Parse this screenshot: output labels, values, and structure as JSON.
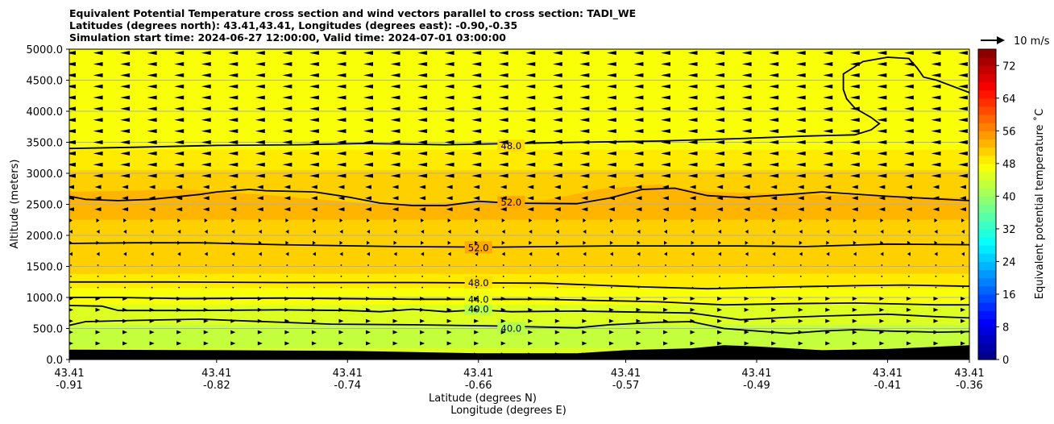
{
  "chart_data": {
    "type": "contour_cross_section",
    "title_lines": [
      "Equivalent Potential Temperature cross section and wind vectors parallel to cross section: TADI_WE",
      "Latitudes (degrees north): 43.41,43.41, Longitudes (degrees east): -0.90,-0.35",
      "Simulation start time: 2024-06-27 12:00:00, Valid time: 2024-07-01 03:00:00"
    ],
    "ylabel": "Altitude (meters)",
    "xlabel_lat": "Latitude (degrees N)",
    "xlabel_lon": "Longitude (degrees E)",
    "ylim": [
      0,
      5000
    ],
    "yticks": [
      "0.0",
      "500.0",
      "1000.0",
      "1500.0",
      "2000.0",
      "2500.0",
      "3000.0",
      "3500.0",
      "4000.0",
      "4500.0",
      "5000.0"
    ],
    "xlim": [
      -0.91,
      -0.36
    ],
    "xticks": [
      {
        "lon": -0.91,
        "lat_label": "43.41",
        "lon_label": "-0.91"
      },
      {
        "lon": -0.82,
        "lat_label": "43.41",
        "lon_label": "-0.82"
      },
      {
        "lon": -0.74,
        "lat_label": "43.41",
        "lon_label": "-0.74"
      },
      {
        "lon": -0.66,
        "lat_label": "43.41",
        "lon_label": "-0.66"
      },
      {
        "lon": -0.57,
        "lat_label": "43.41",
        "lon_label": "-0.57"
      },
      {
        "lon": -0.49,
        "lat_label": "43.41",
        "lon_label": "-0.49"
      },
      {
        "lon": -0.41,
        "lat_label": "43.41",
        "lon_label": "-0.41"
      },
      {
        "lon": -0.36,
        "lat_label": "43.41",
        "lon_label": "-0.36"
      }
    ],
    "grid": true,
    "colorbar": {
      "label": "Equivalent potential temperature $^\\circ$C",
      "label_text": "Equivalent potential temperature ˚C",
      "min": 0,
      "max": 76,
      "step": 2,
      "ticks": [
        "0",
        "8",
        "16",
        "24",
        "32",
        "40",
        "48",
        "56",
        "64",
        "72"
      ]
    },
    "quiver_key": {
      "label": "10 m/s",
      "speed_ms": 10
    },
    "bands": [
      {
        "theta": 45,
        "profile": [
          [
            -0.91,
            180
          ],
          [
            -0.36,
            180
          ]
        ]
      },
      {
        "theta": 43,
        "profile": [
          [
            -0.91,
            560
          ],
          [
            -0.36,
            560
          ]
        ]
      },
      {
        "theta": 45,
        "profile": [
          [
            -0.91,
            880
          ],
          [
            -0.36,
            880
          ]
        ]
      },
      {
        "theta": 47,
        "profile": [
          [
            -0.91,
            1150
          ],
          [
            -0.36,
            1150
          ]
        ]
      },
      {
        "theta": 49,
        "profile": [
          [
            -0.91,
            1380
          ],
          [
            -0.36,
            1380
          ]
        ]
      },
      {
        "theta": 51,
        "profile": [
          [
            -0.91,
            2250
          ],
          [
            -0.36,
            2250
          ]
        ]
      },
      {
        "theta": 53,
        "profile": [
          [
            -0.91,
            2700
          ],
          [
            -0.84,
            2740
          ],
          [
            -0.79,
            2650
          ],
          [
            -0.72,
            2500
          ],
          [
            -0.62,
            2560
          ],
          [
            -0.585,
            2750
          ],
          [
            -0.55,
            2820
          ],
          [
            -0.52,
            2700
          ],
          [
            -0.36,
            2600
          ]
        ]
      },
      {
        "theta": 51,
        "profile": [
          [
            -0.91,
            3050
          ],
          [
            -0.36,
            3050
          ]
        ]
      },
      {
        "theta": 49,
        "profile": [
          [
            -0.91,
            3380
          ],
          [
            -0.36,
            3380
          ]
        ]
      },
      {
        "theta": 47,
        "profile": [
          [
            -0.91,
            5000
          ],
          [
            -0.36,
            5000
          ]
        ]
      }
    ],
    "terrain_m": [
      [
        -0.91,
        160
      ],
      [
        -0.82,
        150
      ],
      [
        -0.74,
        140
      ],
      [
        -0.66,
        100
      ],
      [
        -0.6,
        100
      ],
      [
        -0.57,
        150
      ],
      [
        -0.53,
        180
      ],
      [
        -0.51,
        230
      ],
      [
        -0.49,
        210
      ],
      [
        -0.45,
        150
      ],
      [
        -0.41,
        170
      ],
      [
        -0.36,
        230
      ]
    ],
    "contours": [
      {
        "level": 40,
        "label": "40.0",
        "label_pos": [
          -0.64,
          500
        ],
        "points": [
          [
            -0.91,
            550
          ],
          [
            -0.9,
            610
          ],
          [
            -0.87,
            630
          ],
          [
            -0.83,
            650
          ],
          [
            -0.8,
            620
          ],
          [
            -0.75,
            570
          ],
          [
            -0.7,
            560
          ],
          [
            -0.65,
            540
          ],
          [
            -0.6,
            510
          ],
          [
            -0.58,
            560
          ],
          [
            -0.55,
            600
          ],
          [
            -0.53,
            610
          ],
          [
            -0.51,
            500
          ],
          [
            -0.49,
            460
          ],
          [
            -0.47,
            420
          ],
          [
            -0.45,
            460
          ],
          [
            -0.43,
            480
          ],
          [
            -0.41,
            460
          ],
          [
            -0.38,
            440
          ],
          [
            -0.36,
            450
          ]
        ]
      },
      {
        "level": 40,
        "label": "40.0",
        "label_pos": [
          -0.66,
          810
        ],
        "points": [
          [
            -0.91,
            870
          ],
          [
            -0.89,
            860
          ],
          [
            -0.88,
            790
          ],
          [
            -0.83,
            790
          ],
          [
            -0.78,
            800
          ],
          [
            -0.74,
            790
          ],
          [
            -0.72,
            770
          ],
          [
            -0.7,
            810
          ],
          [
            -0.68,
            770
          ],
          [
            -0.66,
            800
          ],
          [
            -0.64,
            770
          ],
          [
            -0.6,
            780
          ],
          [
            -0.53,
            750
          ],
          [
            -0.5,
            640
          ],
          [
            -0.47,
            680
          ],
          [
            -0.45,
            700
          ],
          [
            -0.41,
            730
          ],
          [
            -0.38,
            690
          ],
          [
            -0.36,
            670
          ]
        ]
      },
      {
        "level": 44,
        "label": "44.0",
        "label_pos": [
          -0.66,
          970
        ],
        "points": [
          [
            -0.91,
            1000
          ],
          [
            -0.88,
            1000
          ],
          [
            -0.84,
            980
          ],
          [
            -0.78,
            990
          ],
          [
            -0.7,
            970
          ],
          [
            -0.62,
            970
          ],
          [
            -0.55,
            930
          ],
          [
            -0.51,
            880
          ],
          [
            -0.47,
            900
          ],
          [
            -0.43,
            910
          ],
          [
            -0.38,
            880
          ],
          [
            -0.36,
            880
          ]
        ]
      },
      {
        "level": 48,
        "label": "48.0",
        "label_pos": [
          -0.66,
          1235
        ],
        "points": [
          [
            -0.91,
            1250
          ],
          [
            -0.85,
            1250
          ],
          [
            -0.78,
            1240
          ],
          [
            -0.7,
            1240
          ],
          [
            -0.62,
            1230
          ],
          [
            -0.56,
            1170
          ],
          [
            -0.52,
            1140
          ],
          [
            -0.47,
            1170
          ],
          [
            -0.43,
            1190
          ],
          [
            -0.4,
            1200
          ],
          [
            -0.36,
            1180
          ]
        ]
      },
      {
        "level": 52,
        "label": "52.0",
        "label_pos": [
          -0.66,
          1800
        ],
        "points": [
          [
            -0.91,
            1870
          ],
          [
            -0.87,
            1880
          ],
          [
            -0.83,
            1880
          ],
          [
            -0.78,
            1850
          ],
          [
            -0.71,
            1820
          ],
          [
            -0.65,
            1810
          ],
          [
            -0.58,
            1830
          ],
          [
            -0.5,
            1830
          ],
          [
            -0.46,
            1820
          ],
          [
            -0.41,
            1860
          ],
          [
            -0.36,
            1850
          ]
        ]
      },
      {
        "level": 52,
        "label": "52.0",
        "label_pos": [
          -0.64,
          2530
        ],
        "points": [
          [
            -0.91,
            2630
          ],
          [
            -0.9,
            2580
          ],
          [
            -0.88,
            2560
          ],
          [
            -0.86,
            2580
          ],
          [
            -0.83,
            2660
          ],
          [
            -0.82,
            2700
          ],
          [
            -0.8,
            2740
          ],
          [
            -0.79,
            2720
          ],
          [
            -0.76,
            2700
          ],
          [
            -0.74,
            2620
          ],
          [
            -0.72,
            2520
          ],
          [
            -0.7,
            2480
          ],
          [
            -0.68,
            2480
          ],
          [
            -0.66,
            2550
          ],
          [
            -0.64,
            2520
          ],
          [
            -0.6,
            2510
          ],
          [
            -0.58,
            2600
          ],
          [
            -0.56,
            2740
          ],
          [
            -0.54,
            2760
          ],
          [
            -0.52,
            2640
          ],
          [
            -0.5,
            2610
          ],
          [
            -0.47,
            2660
          ],
          [
            -0.45,
            2700
          ],
          [
            -0.41,
            2630
          ],
          [
            -0.36,
            2560
          ]
        ]
      },
      {
        "level": 48,
        "label": "48.0",
        "label_pos": [
          -0.64,
          3440
        ],
        "points": [
          [
            -0.91,
            3400
          ],
          [
            -0.87,
            3420
          ],
          [
            -0.82,
            3450
          ],
          [
            -0.77,
            3460
          ],
          [
            -0.73,
            3480
          ],
          [
            -0.68,
            3460
          ],
          [
            -0.6,
            3500
          ],
          [
            -0.55,
            3520
          ],
          [
            -0.5,
            3560
          ],
          [
            -0.46,
            3600
          ],
          [
            -0.43,
            3620
          ],
          [
            -0.42,
            3700
          ],
          [
            -0.415,
            3800
          ],
          [
            -0.42,
            3900
          ],
          [
            -0.43,
            4050
          ],
          [
            -0.435,
            4200
          ],
          [
            -0.437,
            4350
          ],
          [
            -0.437,
            4600
          ],
          [
            -0.425,
            4800
          ],
          [
            -0.41,
            4870
          ],
          [
            -0.397,
            4850
          ],
          [
            -0.392,
            4700
          ],
          [
            -0.388,
            4550
          ],
          [
            -0.38,
            4500
          ],
          [
            -0.37,
            4400
          ],
          [
            -0.36,
            4300
          ]
        ]
      }
    ]
  }
}
